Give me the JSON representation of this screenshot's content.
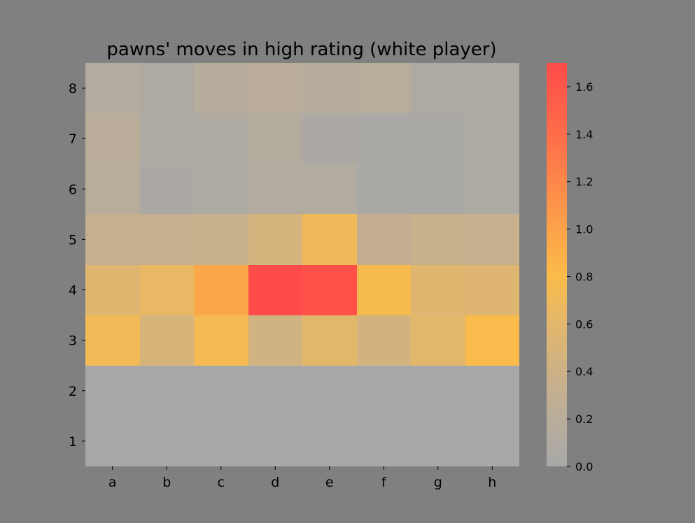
{
  "chart_data": {
    "type": "heatmap",
    "title": "pawns' moves in high rating (white player)",
    "xlabel": "",
    "ylabel": "",
    "x_categories": [
      "a",
      "b",
      "c",
      "d",
      "e",
      "f",
      "g",
      "h"
    ],
    "y_categories": [
      "8",
      "7",
      "6",
      "5",
      "4",
      "3",
      "2",
      "1"
    ],
    "values": [
      [
        0.12,
        0.08,
        0.17,
        0.21,
        0.16,
        0.18,
        0.07,
        0.07
      ],
      [
        0.21,
        0.06,
        0.09,
        0.14,
        0.05,
        0.03,
        0.04,
        0.09
      ],
      [
        0.2,
        0.05,
        0.06,
        0.13,
        0.12,
        0.03,
        0.03,
        0.06
      ],
      [
        0.31,
        0.32,
        0.34,
        0.47,
        0.7,
        0.3,
        0.34,
        0.33
      ],
      [
        0.57,
        0.65,
        0.95,
        1.7,
        1.66,
        0.77,
        0.57,
        0.56
      ],
      [
        0.73,
        0.49,
        0.75,
        0.44,
        0.61,
        0.45,
        0.6,
        0.79
      ],
      [
        0.0,
        0.0,
        0.0,
        0.0,
        0.0,
        0.0,
        0.0,
        0.0
      ],
      [
        0.0,
        0.0,
        0.0,
        0.0,
        0.0,
        0.0,
        0.0,
        0.0
      ]
    ],
    "colorbar": {
      "range": [
        0.0,
        1.7
      ],
      "ticks": [
        "0.0",
        "0.2",
        "0.4",
        "0.6",
        "0.8",
        "1.0",
        "1.2",
        "1.4",
        "1.6"
      ],
      "tick_values": [
        0.0,
        0.2,
        0.4,
        0.6,
        0.8,
        1.0,
        1.2,
        1.4,
        1.6
      ],
      "colormap": [
        {
          "value": 0.0,
          "color": "#a8a8a8"
        },
        {
          "value": 0.2,
          "color": "#b8ad9a"
        },
        {
          "value": 0.4,
          "color": "#cdb186"
        },
        {
          "value": 0.6,
          "color": "#e2b76c"
        },
        {
          "value": 0.8,
          "color": "#fbbb4a"
        },
        {
          "value": 1.0,
          "color": "#fca24a"
        },
        {
          "value": 1.2,
          "color": "#fd874a"
        },
        {
          "value": 1.4,
          "color": "#fe6d4a"
        },
        {
          "value": 1.7,
          "color": "#ff4c4a"
        }
      ]
    },
    "grid": false,
    "legend": "colorbar-right"
  },
  "colors": {
    "figure_background": "#808080",
    "tick_color": "#000000"
  }
}
